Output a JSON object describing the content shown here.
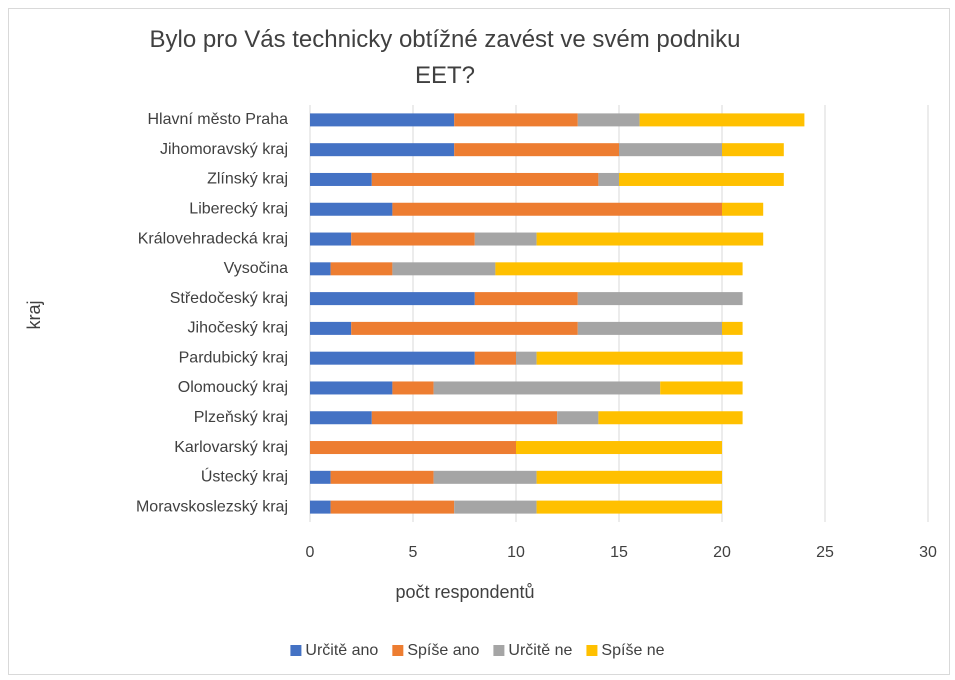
{
  "chart_data": {
    "type": "stacked-barh",
    "title": "Bylo pro Vás technicky obtížné zavést ve svém podniku EET?",
    "xlabel": "počt respondentů",
    "ylabel": "kraj",
    "categories": [
      "Hlavní město Praha",
      "Jihomoravský kraj",
      "Zlínský kraj",
      "Liberecký kraj",
      "Královehradecká kraj",
      "Vysočina",
      "Středočeský kraj",
      "Jihočeský kraj",
      "Pardubický kraj",
      "Olomoucký kraj",
      "Plzeňský kraj",
      "Karlovarský kraj",
      "Ústecký kraj",
      "Moravskoslezský kraj"
    ],
    "series": [
      {
        "name": "Určitě ano",
        "color": "#4472c4",
        "values": [
          7,
          7,
          3,
          4,
          2,
          1,
          8,
          2,
          8,
          4,
          3,
          0,
          1,
          1
        ]
      },
      {
        "name": "Spíše ano",
        "color": "#ed7d31",
        "values": [
          6,
          8,
          11,
          16,
          6,
          3,
          5,
          11,
          2,
          2,
          9,
          10,
          5,
          6
        ]
      },
      {
        "name": "Určitě ne",
        "color": "#a5a5a5",
        "values": [
          3,
          5,
          1,
          0,
          3,
          5,
          8,
          7,
          1,
          11,
          2,
          0,
          5,
          4
        ]
      },
      {
        "name": "Spíše ne",
        "color": "#ffc000",
        "values": [
          8,
          3,
          8,
          2,
          11,
          12,
          0,
          1,
          10,
          4,
          7,
          10,
          9,
          9
        ]
      }
    ],
    "xlim": [
      0,
      30
    ],
    "xticks": [
      0,
      5,
      10,
      15,
      20,
      25,
      30
    ],
    "grid": true,
    "legend": "bottom"
  }
}
